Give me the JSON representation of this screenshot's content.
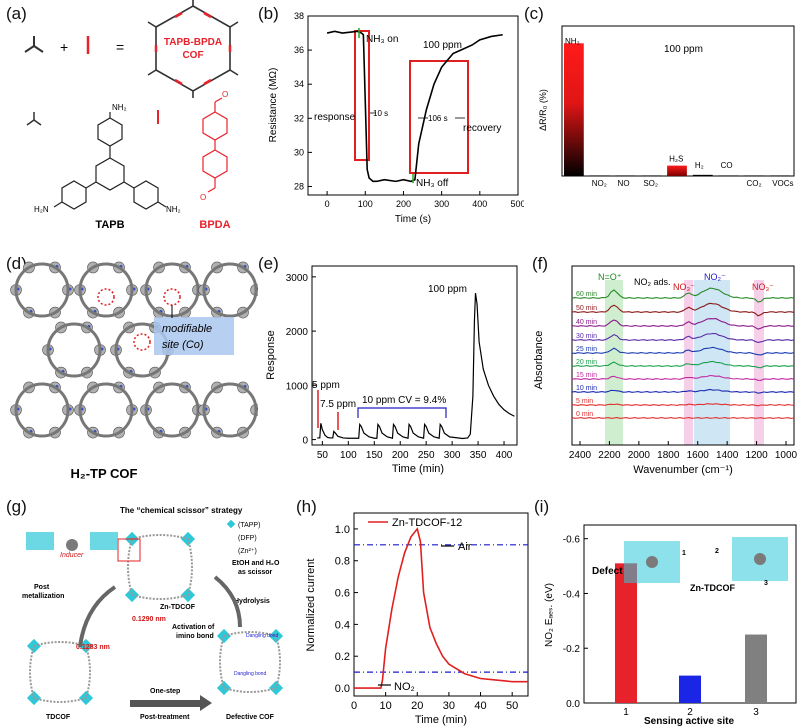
{
  "panel_labels": [
    "(a)",
    "(b)",
    "(c)",
    "(d)",
    "(e)",
    "(f)",
    "(g)",
    "(h)",
    "(i)"
  ],
  "panel_a": {
    "cof_label_line1": "TAPB-BPDA",
    "cof_label_line2": "COF",
    "plus": "+",
    "equals": "=",
    "tapb_name": "TAPB",
    "bpda_name": "BPDA",
    "nh2": "NH₂",
    "h2n": "H₂N",
    "o": "O",
    "colors": {
      "accent": "#e8222b"
    }
  },
  "panel_b": {
    "ylabel": "Resistance (MΩ)",
    "xlabel": "Time (s)",
    "ann_nh3_on": "NH₃ on",
    "ann_nh3_off": "NH₃ off",
    "ann_ppm": "100 ppm",
    "ann_response": "response",
    "ann_recovery": "recovery",
    "ann_10s": "10 s",
    "ann_106s": "106 s",
    "xticks": [
      "0",
      "100",
      "200",
      "300",
      "400",
      "500"
    ],
    "yticks": [
      "28",
      "30",
      "32",
      "34",
      "36",
      "38"
    ]
  },
  "panel_c": {
    "ylabel": "ΔR/R₀ (%)",
    "ann_ppm": "100 ppm",
    "gases": [
      "NH₃",
      "NO₂",
      "NO",
      "SO₂",
      "H₂S",
      "H₂",
      "CO",
      "CO₂",
      "VOCs"
    ]
  },
  "panel_d": {
    "caption": "H₂-TP COF",
    "ann_line1": "modifiable",
    "ann_line2": "site (Co)"
  },
  "panel_e": {
    "ylabel": "Response",
    "xlabel": "Time (min)",
    "ann_5ppm": "5 ppm",
    "ann_7_5ppm": "7.5 ppm",
    "ann_10ppm": "10 ppm CV = 9.4%",
    "ann_100ppm": "100 ppm",
    "xticks": [
      "50",
      "100",
      "150",
      "200",
      "250",
      "300",
      "350",
      "400"
    ],
    "yticks": [
      "0",
      "1000",
      "2000",
      "3000"
    ]
  },
  "panel_f": {
    "ylabel": "Absorbance",
    "xlabel": "Wavenumber (cm⁻¹)",
    "ann_no_plus": "N=O⁺",
    "ann_no2_ads": "NO₂ ads.",
    "ann_no3_a": "NO₃⁻",
    "ann_no2_minus": "NO₂⁻",
    "ann_no3_b": "NO₃⁻",
    "time_labels": [
      "60 min",
      "50 min",
      "40 min",
      "30 min",
      "25 min",
      "20 min",
      "15 min",
      "10 min",
      "5 min",
      "0 min"
    ],
    "xticks": [
      "2400",
      "2200",
      "2000",
      "1800",
      "1600",
      "1400",
      "1200",
      "1000"
    ]
  },
  "panel_g": {
    "strategy": "The “chemical scissor” strategy",
    "legend_tapp": "(TAPP)",
    "legend_dfp": "(DFP)",
    "legend_zn": "(Zn²⁺)",
    "inducer": "Inducer",
    "post_metal_1": "Post",
    "post_metal_2": "metallization",
    "etoh_1": "EtOH and H₂O",
    "etoh_2": "as scissor",
    "zn_tdcof": "Zn-TDCOF",
    "hydrolysis": "Hydrolysis",
    "dist1": "0.1290 nm",
    "dist2": "0.1283 nm",
    "activation_1": "Activation of",
    "activation_2": "imino bond",
    "tdcof": "TDCOF",
    "onestep_1": "One-step",
    "onestep_2": "Post-treatment",
    "defective": "Defective COF",
    "dangling": "Dangling bond"
  },
  "panel_h": {
    "ylabel": "Normalized current",
    "xlabel": "Time (min)",
    "legend": "Zn-TDCOF-12",
    "ann_air": "Air",
    "ann_no2": "NO₂",
    "xticks": [
      "0",
      "10",
      "20",
      "30",
      "40",
      "50"
    ],
    "yticks": [
      "0.0",
      "0.2",
      "0.4",
      "0.6",
      "0.8",
      "1.0"
    ]
  },
  "panel_i": {
    "ylabel": "NO₂ Eₐₑₛ. (eV)",
    "xlabel": "Sensing active site",
    "ann_defect": "Defect",
    "ann_zn": "Zn-TDCOF",
    "mol_labels": [
      "1",
      "2",
      "3"
    ],
    "xticks": [
      "1",
      "2",
      "3"
    ],
    "yticks": [
      "0.0",
      "-0.2",
      "-0.4",
      "-0.6"
    ]
  },
  "chart_data": [
    {
      "type": "line",
      "panel": "b",
      "xlabel": "Time (s)",
      "ylabel": "Resistance (MΩ)",
      "xlim": [
        -50,
        500
      ],
      "ylim": [
        27.5,
        38
      ],
      "series": [
        {
          "x": [
            0,
            20,
            40,
            60,
            80,
            90,
            95,
            100,
            105,
            110,
            120,
            130,
            150,
            180,
            200,
            220,
            230,
            240,
            260,
            280,
            300,
            330,
            350,
            380,
            400,
            430,
            460
          ],
          "y": [
            37.0,
            37.1,
            37.0,
            37.05,
            37.1,
            37.0,
            36.9,
            33.0,
            29.0,
            28.5,
            28.3,
            28.3,
            28.4,
            28.3,
            28.4,
            28.3,
            28.4,
            30.5,
            32.5,
            34.0,
            35.0,
            35.8,
            36.0,
            36.3,
            36.6,
            36.8,
            36.9
          ]
        }
      ]
    },
    {
      "type": "bar",
      "panel": "c",
      "ylabel": "ΔR/R₀ (%)",
      "categories": [
        "NH₃",
        "NO₂",
        "NO",
        "SO₂",
        "H₂S",
        "H₂",
        "CO",
        "CO₂",
        "VOCs"
      ],
      "values": [
        23,
        0.1,
        0.1,
        0.1,
        1.8,
        0.2,
        0.1,
        0.1,
        0.1
      ],
      "ylim": [
        0,
        26
      ]
    },
    {
      "type": "line",
      "panel": "e",
      "xlabel": "Time (min)",
      "ylabel": "Response",
      "xlim": [
        30,
        425
      ],
      "ylim": [
        -100,
        3200
      ],
      "series": [
        {
          "x": [
            40,
            45,
            47,
            50,
            55,
            60,
            65,
            70,
            72,
            75,
            80,
            90,
            100,
            110,
            120,
            122,
            125,
            130,
            140,
            150,
            155,
            157,
            160,
            165,
            175,
            185,
            187,
            190,
            195,
            205,
            215,
            217,
            220,
            225,
            235,
            245,
            247,
            250,
            255,
            265,
            275,
            277,
            280,
            285,
            295,
            320,
            330,
            335,
            340,
            343,
            345,
            348,
            352,
            360,
            370,
            380,
            390,
            400,
            410,
            420
          ],
          "y": [
            30,
            30,
            300,
            180,
            80,
            40,
            30,
            30,
            150,
            120,
            60,
            30,
            25,
            25,
            25,
            280,
            240,
            120,
            50,
            25,
            25,
            280,
            240,
            120,
            50,
            25,
            280,
            240,
            120,
            50,
            25,
            280,
            240,
            120,
            50,
            25,
            280,
            240,
            120,
            50,
            25,
            280,
            240,
            120,
            50,
            20,
            30,
            100,
            800,
            2200,
            2700,
            2500,
            1800,
            1300,
            1000,
            800,
            650,
            550,
            480,
            430
          ]
        }
      ]
    },
    {
      "type": "line",
      "panel": "h",
      "xlabel": "Time (min)",
      "ylabel": "Normalized current",
      "xlim": [
        0,
        55
      ],
      "ylim": [
        -0.05,
        1.1
      ],
      "series": [
        {
          "name": "Zn-TDCOF-12",
          "x": [
            0,
            8.5,
            9,
            10,
            12,
            14,
            16,
            18,
            20,
            21,
            22,
            24,
            26,
            28,
            30,
            35,
            40,
            45,
            50,
            55
          ],
          "y": [
            0,
            0,
            0.05,
            0.25,
            0.5,
            0.7,
            0.85,
            0.95,
            1.0,
            0.92,
            0.6,
            0.38,
            0.28,
            0.2,
            0.15,
            0.09,
            0.06,
            0.05,
            0.04,
            0.04
          ]
        }
      ]
    },
    {
      "type": "bar",
      "panel": "i",
      "xlabel": "Sensing active site",
      "ylabel": "NO₂ Eₐₑₛ. (eV)",
      "categories": [
        "1",
        "2",
        "3"
      ],
      "values": [
        -0.51,
        -0.1,
        -0.25
      ],
      "ylim": [
        0,
        -0.65
      ],
      "colors": [
        "#e8222b",
        "#1b25e6",
        "#808080"
      ]
    }
  ]
}
